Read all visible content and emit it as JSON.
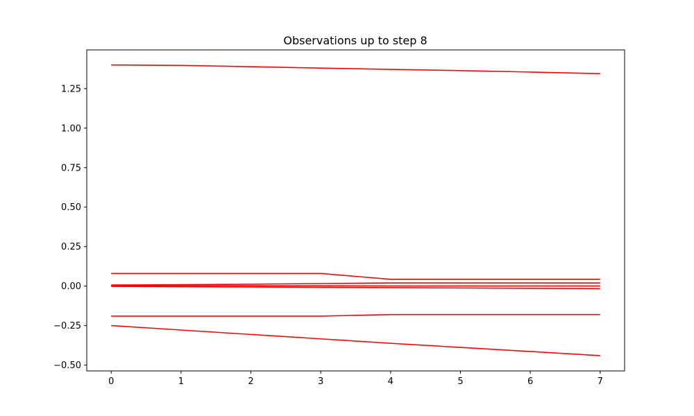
{
  "chart_data": {
    "type": "line",
    "title": "Observations up to step 8",
    "xlabel": "",
    "ylabel": "",
    "x": [
      0,
      1,
      2,
      3,
      4,
      5,
      6,
      7
    ],
    "xlim": [
      -0.35,
      7.35
    ],
    "ylim": [
      -0.537,
      1.495
    ],
    "xticks": [
      0,
      1,
      2,
      3,
      4,
      5,
      6,
      7
    ],
    "xtick_labels": [
      "0",
      "1",
      "2",
      "3",
      "4",
      "5",
      "6",
      "7"
    ],
    "yticks": [
      -0.5,
      -0.25,
      0,
      0.25,
      0.5,
      0.75,
      1.0,
      1.25
    ],
    "ytick_labels": [
      "−0.50",
      "−0.25",
      "0.00",
      "0.25",
      "0.50",
      "0.75",
      "1.00",
      "1.25"
    ],
    "grid": false,
    "line_color": "#ff0000",
    "series": [
      {
        "values": [
          1.4,
          1.397,
          1.389,
          1.38,
          1.372,
          1.364,
          1.355,
          1.345
        ]
      },
      {
        "values": [
          0.08,
          0.08,
          0.08,
          0.08,
          0.043,
          0.043,
          0.043,
          0.043
        ]
      },
      {
        "values": [
          0.007,
          0.009,
          0.012,
          0.016,
          0.02,
          0.02,
          0.02,
          0.02
        ]
      },
      {
        "values": [
          0.003,
          0.003,
          0.002,
          0.002,
          0.001,
          0.001,
          0.001,
          0.001
        ]
      },
      {
        "values": [
          -0.002,
          -0.004,
          -0.006,
          -0.008,
          -0.01,
          -0.012,
          -0.014,
          -0.016
        ]
      },
      {
        "values": [
          -0.19,
          -0.19,
          -0.19,
          -0.19,
          -0.18,
          -0.18,
          -0.18,
          -0.18
        ]
      },
      {
        "values": [
          -0.25,
          -0.278,
          -0.306,
          -0.334,
          -0.362,
          -0.388,
          -0.414,
          -0.44
        ]
      }
    ]
  }
}
